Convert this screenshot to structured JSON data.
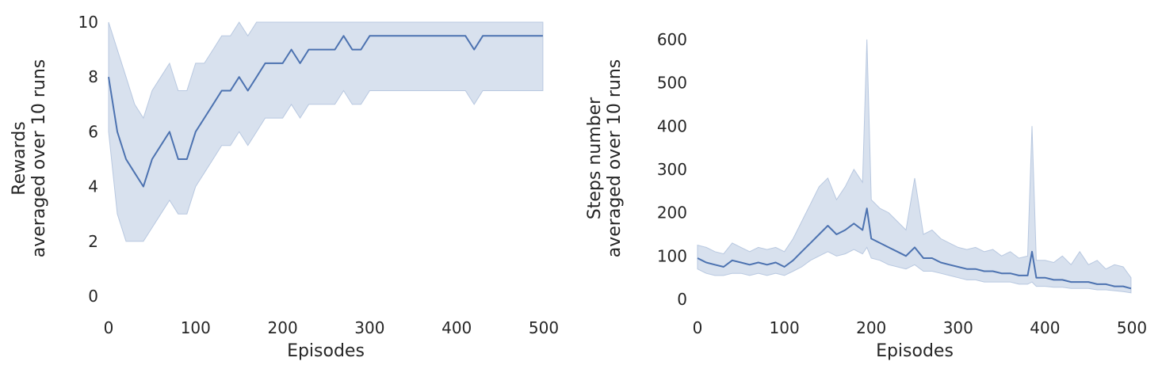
{
  "colors": {
    "line": "#4c72b0",
    "band": "#b8c8e0",
    "text": "#262626",
    "background": "#ffffff"
  },
  "chart_data": [
    {
      "type": "line",
      "title": "",
      "xlabel": "Episodes",
      "ylabel_lines": [
        "Rewards",
        "averaged over 10 runs"
      ],
      "xlim": [
        0,
        500
      ],
      "ylim": [
        0,
        10
      ],
      "xticks": [
        "0",
        "100",
        "200",
        "300",
        "400",
        "500"
      ],
      "yticks": [
        "0",
        "2",
        "4",
        "6",
        "8",
        "10"
      ],
      "grid": false,
      "ci_band": true,
      "series": [
        {
          "x": [
            0,
            10,
            20,
            30,
            40,
            50,
            60,
            70,
            80,
            90,
            100,
            110,
            120,
            130,
            140,
            150,
            160,
            170,
            180,
            190,
            200,
            210,
            220,
            230,
            240,
            250,
            260,
            270,
            280,
            290,
            300,
            310,
            320,
            330,
            340,
            350,
            360,
            370,
            380,
            390,
            400,
            410,
            420,
            430,
            440,
            450,
            460,
            470,
            480,
            490,
            499
          ],
          "y": [
            8,
            6,
            5,
            4.5,
            4,
            5,
            5.5,
            6,
            5,
            5,
            6,
            6.5,
            7,
            7.5,
            7.5,
            8,
            7.5,
            8,
            8.5,
            8.5,
            8.5,
            9,
            8.5,
            9,
            9,
            9,
            9,
            9.5,
            9,
            9,
            9.5,
            9.5,
            9.5,
            9.5,
            9.5,
            9.5,
            9.5,
            9.5,
            9.5,
            9.5,
            9.5,
            9.5,
            9,
            9.5,
            9.5,
            9.5,
            9.5,
            9.5,
            9.5,
            9.5,
            9.5
          ],
          "lower": [
            6,
            3,
            2,
            2,
            2,
            2.5,
            3,
            3.5,
            3,
            3,
            4,
            4.5,
            5,
            5.5,
            5.5,
            6,
            5.5,
            6,
            6.5,
            6.5,
            6.5,
            7,
            6.5,
            7,
            7,
            7,
            7,
            7.5,
            7,
            7,
            7.5,
            7.5,
            7.5,
            7.5,
            7.5,
            7.5,
            7.5,
            7.5,
            7.5,
            7.5,
            7.5,
            7.5,
            7,
            7.5,
            7.5,
            7.5,
            7.5,
            7.5,
            7.5,
            7.5,
            7.5
          ],
          "upper": [
            10,
            9,
            8,
            7,
            6.5,
            7.5,
            8,
            8.5,
            7.5,
            7.5,
            8.5,
            8.5,
            9,
            9.5,
            9.5,
            10,
            9.5,
            10,
            10,
            10,
            10,
            10,
            10,
            10,
            10,
            10,
            10,
            10,
            10,
            10,
            10,
            10,
            10,
            10,
            10,
            10,
            10,
            10,
            10,
            10,
            10,
            10,
            10,
            10,
            10,
            10,
            10,
            10,
            10,
            10,
            10
          ]
        }
      ]
    },
    {
      "type": "line",
      "title": "",
      "xlabel": "Episodes",
      "ylabel_lines": [
        "Steps number",
        "averaged over 10 runs"
      ],
      "xlim": [
        0,
        500
      ],
      "ylim": [
        0,
        640
      ],
      "xticks": [
        "0",
        "100",
        "200",
        "300",
        "400",
        "500"
      ],
      "yticks": [
        "0",
        "100",
        "200",
        "300",
        "400",
        "500",
        "600"
      ],
      "grid": false,
      "ci_band": true,
      "series": [
        {
          "x": [
            0,
            10,
            20,
            30,
            40,
            50,
            60,
            70,
            80,
            90,
            100,
            110,
            120,
            130,
            140,
            150,
            160,
            170,
            180,
            190,
            195,
            200,
            210,
            220,
            230,
            240,
            250,
            260,
            270,
            280,
            290,
            300,
            310,
            320,
            330,
            340,
            350,
            360,
            370,
            380,
            385,
            390,
            400,
            410,
            420,
            430,
            440,
            450,
            460,
            470,
            480,
            490,
            499
          ],
          "y": [
            95,
            85,
            80,
            75,
            90,
            85,
            80,
            85,
            80,
            85,
            75,
            90,
            110,
            130,
            150,
            170,
            150,
            160,
            175,
            160,
            210,
            140,
            130,
            120,
            110,
            100,
            120,
            95,
            95,
            85,
            80,
            75,
            70,
            70,
            65,
            65,
            60,
            60,
            55,
            55,
            110,
            50,
            50,
            45,
            45,
            40,
            40,
            40,
            35,
            35,
            30,
            30,
            25
          ],
          "lower": [
            70,
            60,
            55,
            55,
            60,
            60,
            55,
            60,
            55,
            60,
            55,
            65,
            75,
            90,
            100,
            110,
            100,
            105,
            115,
            105,
            120,
            95,
            90,
            80,
            75,
            70,
            80,
            65,
            65,
            60,
            55,
            50,
            45,
            45,
            40,
            40,
            40,
            40,
            35,
            35,
            40,
            30,
            30,
            28,
            28,
            25,
            25,
            25,
            22,
            22,
            20,
            18,
            15
          ],
          "upper": [
            125,
            120,
            110,
            105,
            130,
            120,
            110,
            120,
            115,
            120,
            110,
            140,
            180,
            220,
            260,
            280,
            230,
            260,
            300,
            270,
            600,
            230,
            210,
            200,
            180,
            160,
            280,
            150,
            160,
            140,
            130,
            120,
            115,
            120,
            110,
            115,
            100,
            110,
            95,
            100,
            400,
            90,
            90,
            85,
            100,
            80,
            110,
            80,
            90,
            70,
            80,
            75,
            50
          ]
        }
      ]
    }
  ]
}
